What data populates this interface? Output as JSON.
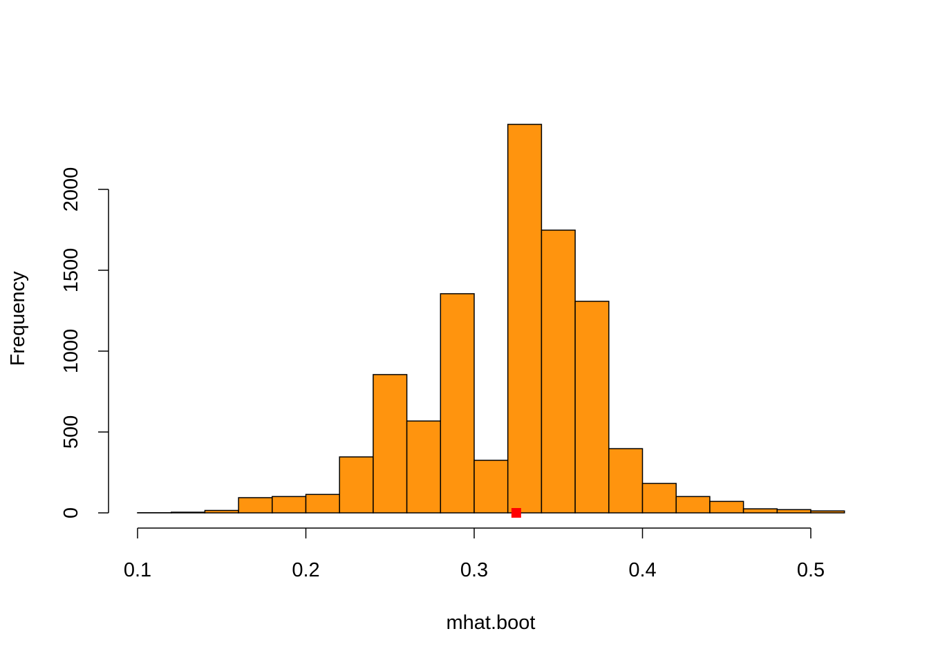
{
  "chart_data": {
    "type": "bar",
    "title": "",
    "xlabel": "mhat.boot",
    "ylabel": "Frequency",
    "bin_edges": [
      0.1,
      0.12,
      0.14,
      0.16,
      0.18,
      0.2,
      0.22,
      0.24,
      0.26,
      0.28,
      0.3,
      0.32,
      0.34,
      0.36,
      0.38,
      0.4,
      0.42,
      0.44,
      0.46,
      0.48,
      0.5,
      0.52
    ],
    "values": [
      1,
      4,
      15,
      94,
      101,
      114,
      346,
      855,
      568,
      1355,
      325,
      2402,
      1748,
      1308,
      397,
      182,
      101,
      71,
      25,
      20,
      12
    ],
    "xlim": [
      0.1,
      0.52
    ],
    "ylim": [
      0,
      2402
    ],
    "x_ticks": [
      "0.1",
      "0.2",
      "0.3",
      "0.4",
      "0.5"
    ],
    "y_ticks": [
      "0",
      "500",
      "1000",
      "1500",
      "2000"
    ],
    "bar_color": "#FF940E",
    "marker": {
      "x": 0.325,
      "y": 0,
      "color": "#FF0000",
      "shape": "square"
    },
    "grid": false
  }
}
